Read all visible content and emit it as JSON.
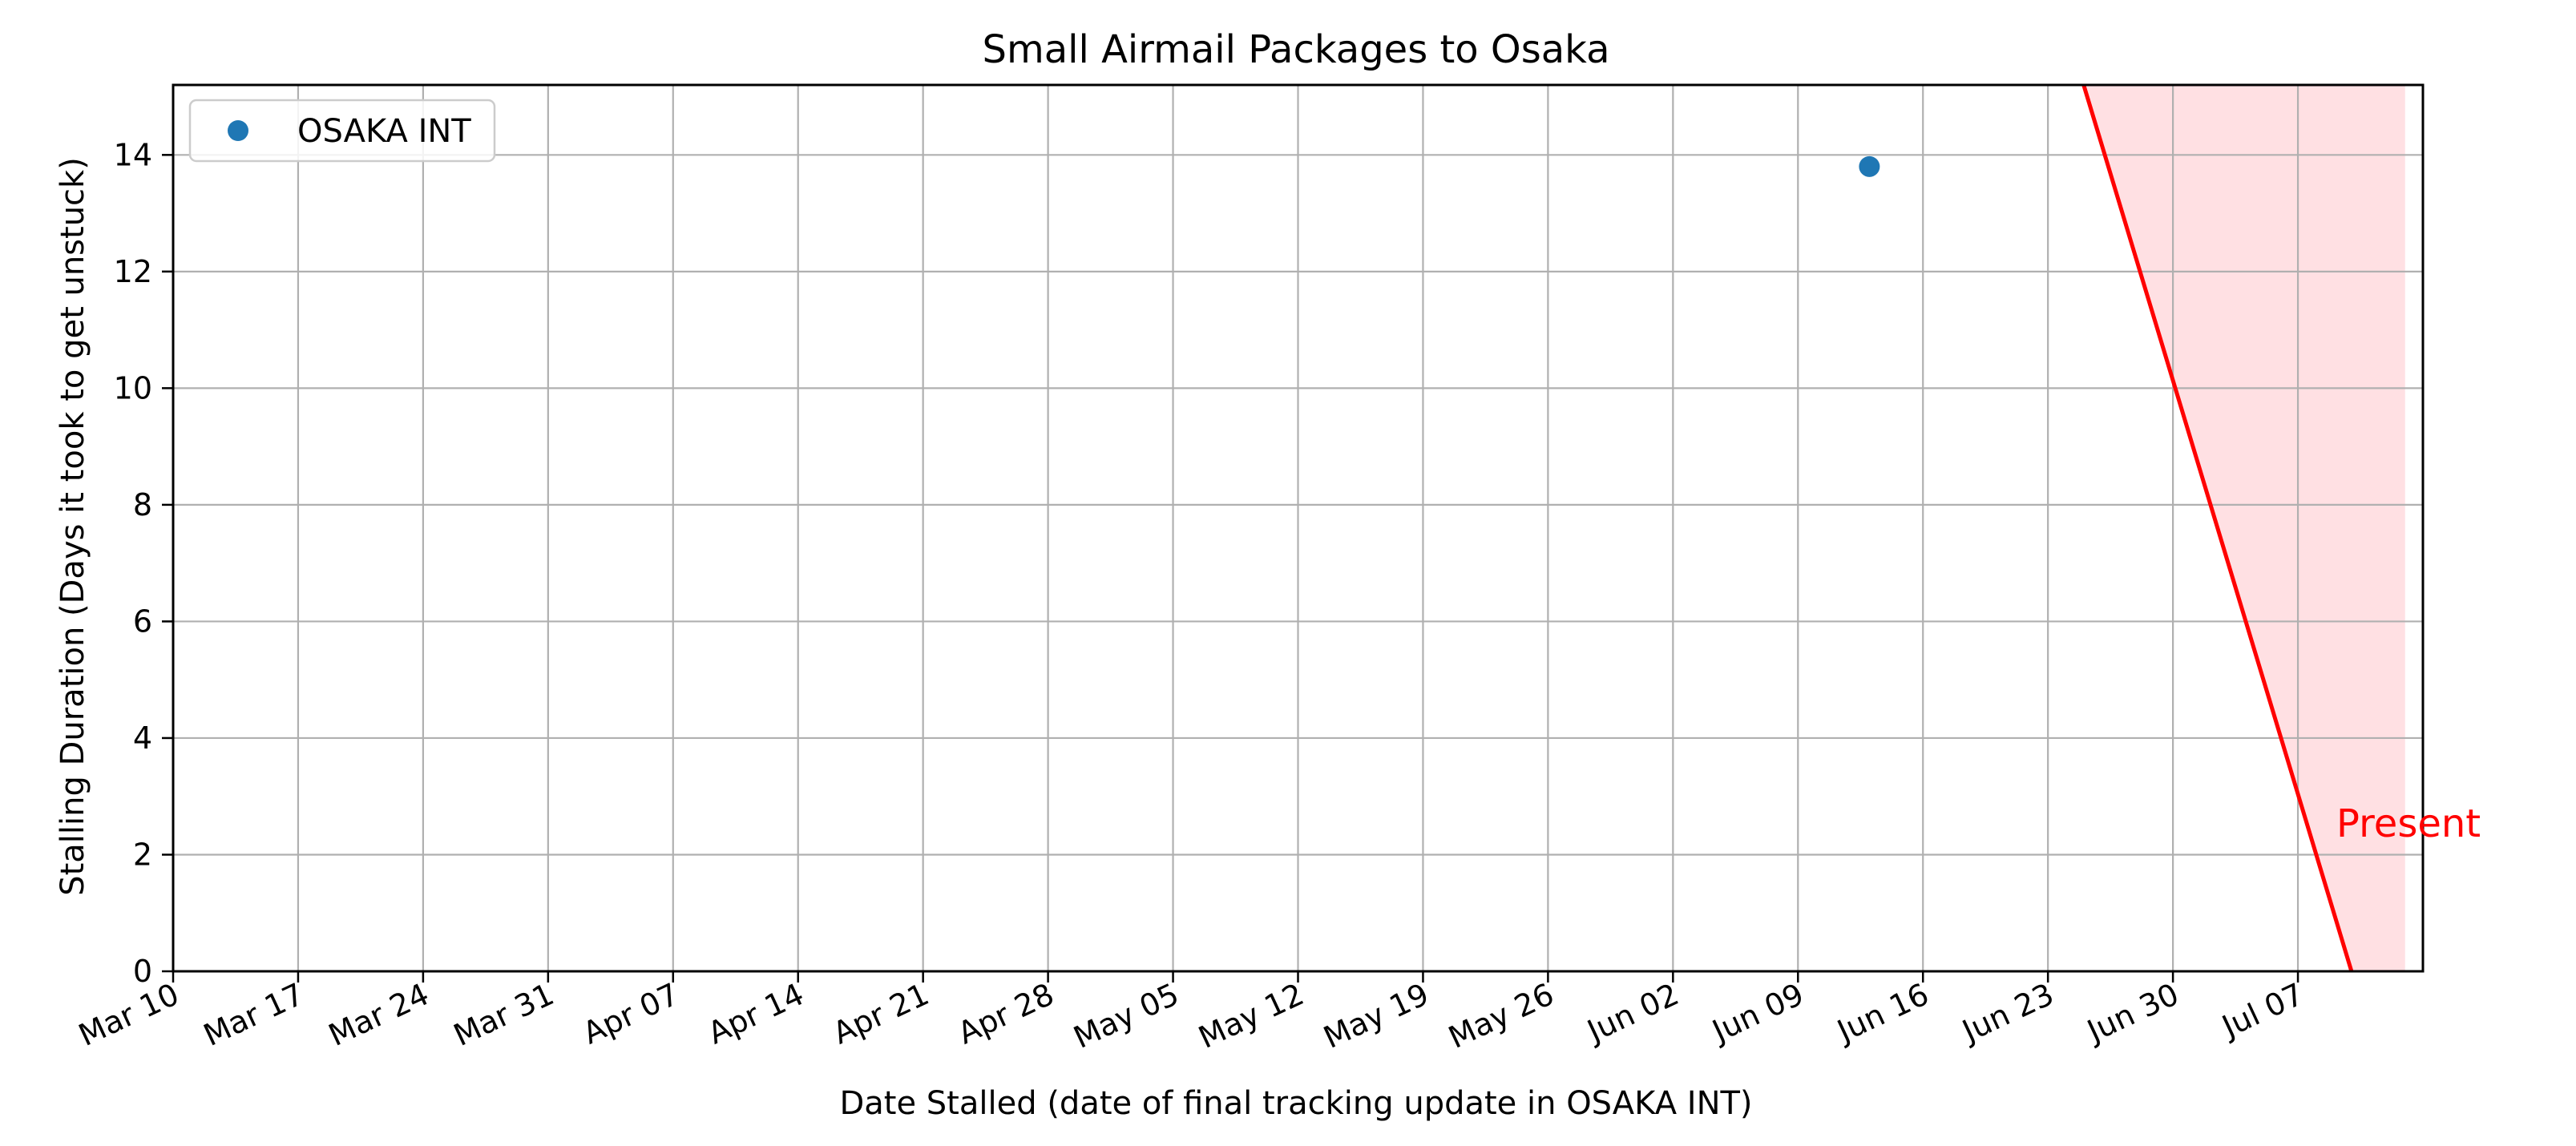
{
  "chart_data": {
    "type": "scatter",
    "title": "Small Airmail Packages to Osaka",
    "xlabel": "Date Stalled (date of final tracking update in OSAKA INT)",
    "ylabel": "Stalling Duration (Days it took to get unstuck)",
    "x_axis": "date",
    "xlim": [
      "2025-03-10",
      "2025-07-14"
    ],
    "ylim": [
      0,
      15.2
    ],
    "x_ticks": [
      "2025-03-10",
      "2025-03-17",
      "2025-03-24",
      "2025-03-31",
      "2025-04-07",
      "2025-04-14",
      "2025-04-21",
      "2025-04-28",
      "2025-05-05",
      "2025-05-12",
      "2025-05-19",
      "2025-05-26",
      "2025-06-02",
      "2025-06-09",
      "2025-06-16",
      "2025-06-23",
      "2025-06-30",
      "2025-07-07"
    ],
    "x_tick_labels": [
      "Mar 10",
      "Mar 17",
      "Mar 24",
      "Mar 31",
      "Apr 07",
      "Apr 14",
      "Apr 21",
      "Apr 28",
      "May 05",
      "May 12",
      "May 19",
      "May 26",
      "Jun 02",
      "Jun 09",
      "Jun 16",
      "Jun 23",
      "Jun 30",
      "Jul 07"
    ],
    "y_ticks": [
      0,
      2,
      4,
      6,
      8,
      10,
      12,
      14
    ],
    "y_tick_labels": [
      "0",
      "2",
      "4",
      "6",
      "8",
      "10",
      "12",
      "14"
    ],
    "grid": true,
    "legend_position": "top-left",
    "series": [
      {
        "name": "OSAKA INT",
        "color": "#1f77b4",
        "points": [
          {
            "x": "2025-06-13",
            "y": 13.8
          }
        ]
      }
    ],
    "present_line": {
      "label": "Present",
      "color": "#ff0000",
      "shade_color": "#ffe0e3",
      "points": [
        {
          "x": "2025-06-25",
          "y": 15.2
        },
        {
          "x": "2025-07-10",
          "y": 0
        }
      ],
      "shade_end": "2025-07-13"
    }
  }
}
